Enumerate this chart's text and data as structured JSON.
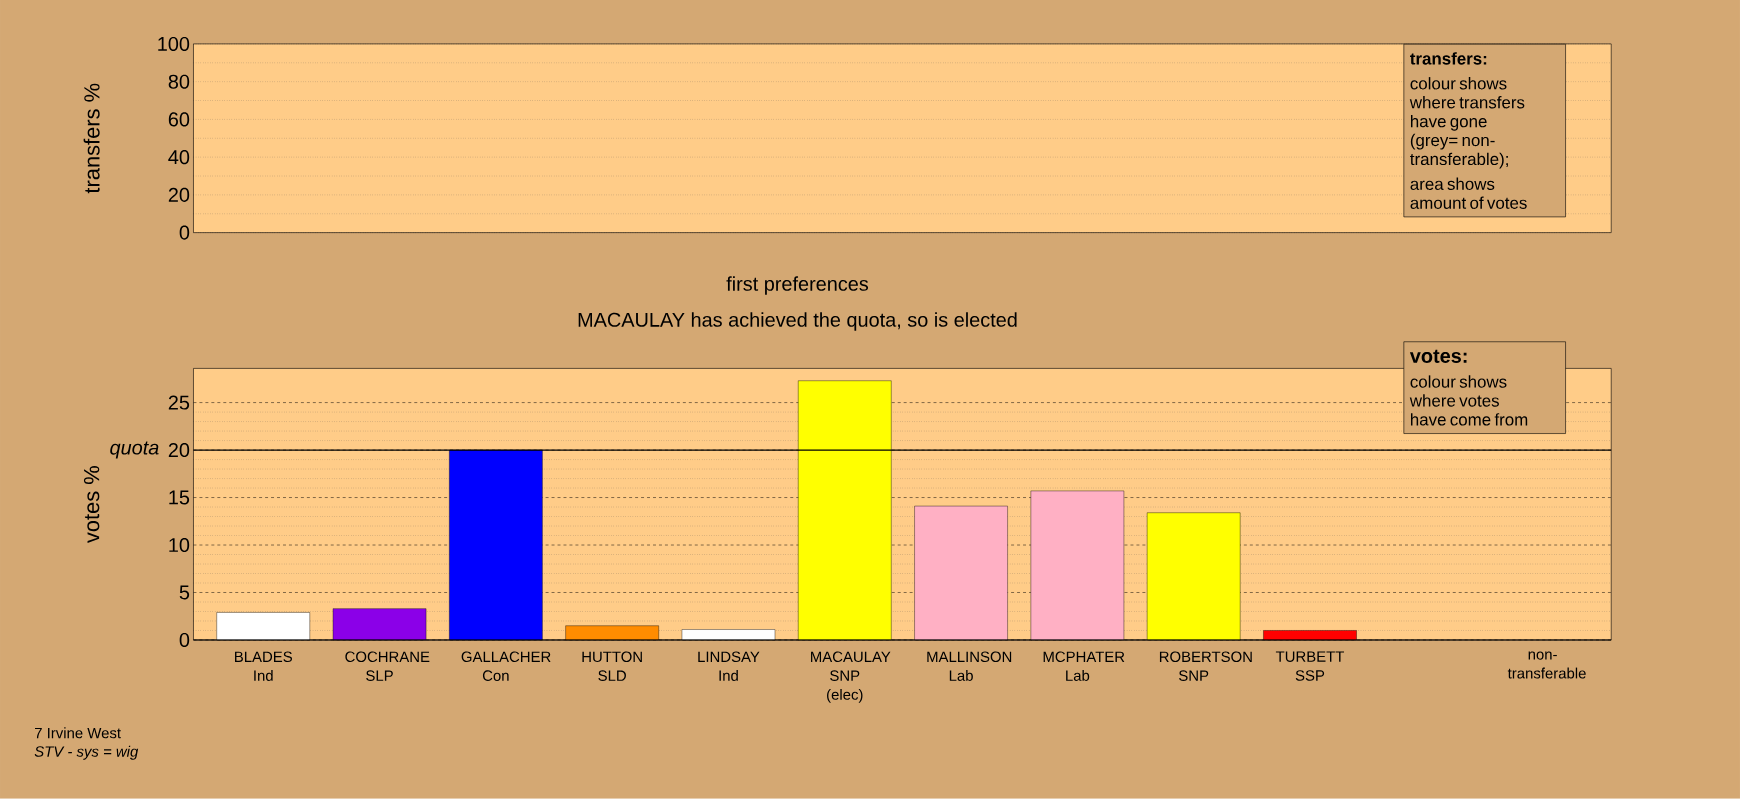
{
  "chart_data": [
    {
      "type": "bar",
      "ylabel": "transfers %",
      "categories": [
        null,
        null,
        null,
        null,
        null,
        null,
        null,
        null,
        null,
        null,
        null,
        null
      ],
      "values": [
        null,
        null,
        null,
        null,
        null,
        null,
        null,
        null,
        null,
        null,
        null,
        null
      ],
      "ylim": [
        0,
        100
      ],
      "yticks": [
        0,
        20,
        40,
        60,
        80,
        100
      ],
      "grid": "y",
      "tick_labels": "y",
      "annotations": [
        "transfers:",
        "colour shows where transfers have gone (grey= non-transferable);",
        "area shows amount of votes"
      ]
    },
    {
      "type": "bar",
      "title": "first preferences",
      "subtitle": "MACAULAY has achieved the quota, so is elected",
      "ylabel": "votes %",
      "categories": [
        "BLADES Ind",
        "COCHRANE SLP",
        "GALLACHER Con",
        "HUTTON SLD",
        "LINDSAY Ind",
        "MACAULAY SNP (elec)",
        "MALLINSON Lab",
        "MCPHATER Lab",
        "ROBERTSON SNP",
        "TURBETT SSP",
        null,
        "non-transferable"
      ],
      "values": [
        2.9,
        3.3,
        20,
        1.5,
        1.1,
        27.3,
        14.1,
        15.7,
        13.4,
        1.0,
        null,
        null
      ],
      "colors": [
        "#ffffff",
        "#8b00e8",
        "#0000ff",
        "#ff8c00",
        "#ffffff",
        "#ffff00",
        "#ffb0c4",
        "#ffb0c4",
        "#ffff00",
        "#ff0000",
        "#ffffff",
        "#ffffff"
      ],
      "ylim": [
        0,
        28.6
      ],
      "yticks": [
        0,
        5,
        10,
        15,
        20,
        25
      ],
      "grid": "y",
      "ref_lines": [
        {
          "axis": "y",
          "value": 20,
          "label": "quota",
          "line_style": "solid",
          "color": "#000000"
        }
      ],
      "annotations": [
        "votes:",
        "colour shows where votes have come from",
        "7 Irvine West",
        "STV - sys = wig"
      ]
    }
  ]
}
